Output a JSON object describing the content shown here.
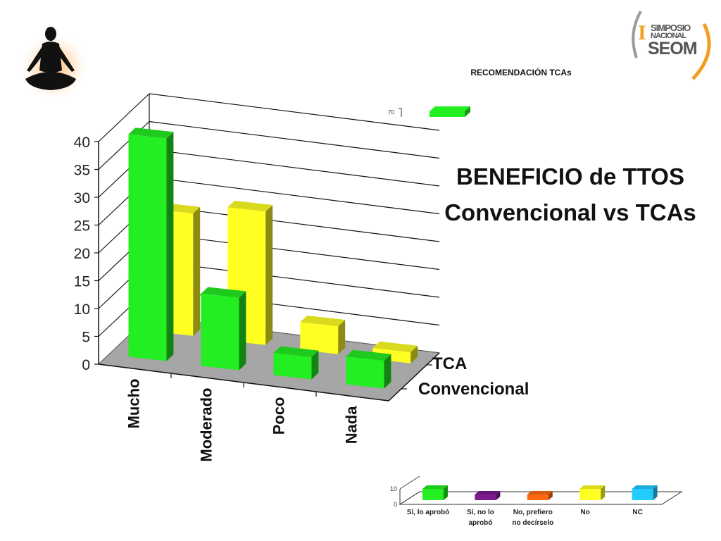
{
  "slide": {
    "title_line1": "BENEFICIO de TTOS",
    "title_line2": "Convencional vs TCAs",
    "small_chart_title": "RECOMENDACIÓN TCAs",
    "small_chart_tick": "70"
  },
  "logo": {
    "roman": "I",
    "line1": "SIMPOSIO",
    "line2": "NACIONAL",
    "line3": "SEOM"
  },
  "colors": {
    "green": "#22ee22",
    "yellow": "#ffff22",
    "floor": "#a6a6a6",
    "logo_orange": "#f0a020"
  },
  "chart_data": [
    {
      "type": "bar",
      "categories": [
        "Mucho",
        "Moderado",
        "Poco",
        "Nada"
      ],
      "series": [
        {
          "name": "Convencional",
          "values": [
            40,
            13,
            4,
            5
          ]
        },
        {
          "name": "TCA",
          "values": [
            22,
            24,
            5,
            2
          ]
        }
      ],
      "yticks": [
        "0",
        "5",
        "10",
        "15",
        "20",
        "25",
        "30",
        "35",
        "40"
      ],
      "ylim": [
        0,
        40
      ],
      "grid": true,
      "legend": "right"
    },
    {
      "type": "bar",
      "categories": [
        "Sí, lo aprobó",
        "Sí, no lo aprobó",
        "No, prefiero no decírselo",
        "No",
        "NC"
      ],
      "category_lines": [
        [
          "Sí, lo aprobó"
        ],
        [
          "Sí, no lo",
          "aprobó"
        ],
        [
          "No, prefiero",
          "no decírselo"
        ],
        [
          "No"
        ],
        [
          "NC"
        ]
      ],
      "values": [
        10,
        5,
        5,
        10,
        10
      ],
      "colors": [
        "#22ee22",
        "#7a1a8c",
        "#ff6a10",
        "#ffff22",
        "#22ccff"
      ],
      "yticks": [
        "0",
        "10"
      ],
      "ylim": [
        0,
        10
      ]
    }
  ]
}
